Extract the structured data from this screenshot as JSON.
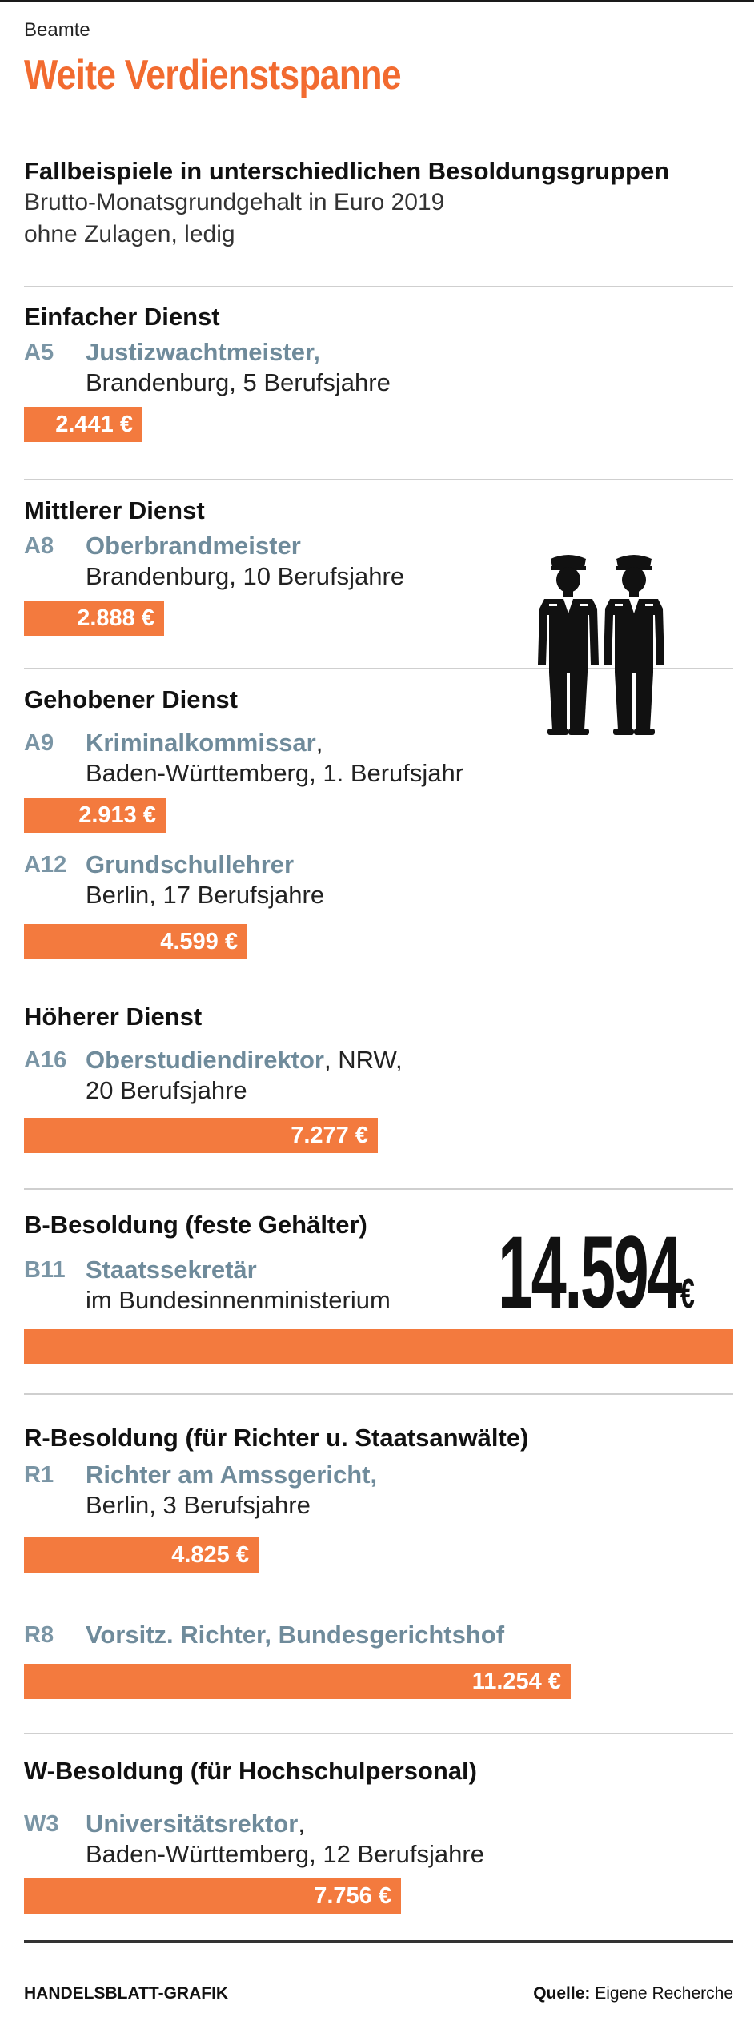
{
  "header": {
    "eyebrow": "Beamte",
    "title": "Weite Verdienstspanne",
    "subtitle_bold": "Fallbeispiele in unterschiedlichen Besoldungsgruppen",
    "subtitle_line2": "Brutto-Monatsgrundgehalt in Euro 2019",
    "subtitle_line3": "ohne Zulagen, ledig"
  },
  "chart_data": {
    "type": "bar",
    "title": "Weite Verdienstspanne",
    "unit": "€",
    "categories": [
      "A5",
      "A8",
      "A9",
      "A12",
      "A16",
      "B11",
      "R1",
      "R8",
      "W3"
    ],
    "values": [
      2441,
      2888,
      2913,
      4599,
      7277,
      14594,
      4825,
      11254,
      7756
    ],
    "value_labels": [
      "2.441 €",
      "2.888 €",
      "2.913 €",
      "4.599 €",
      "7.277 €",
      "14.594",
      "4.825 €",
      "11.254 €",
      "7.756 €"
    ],
    "xlim": [
      0,
      14594
    ],
    "grid": false,
    "legend": "none"
  },
  "sections": [
    {
      "title": "Einfacher Dienst"
    },
    {
      "title": "Mittlerer Dienst"
    },
    {
      "title": "Gehobener Dienst"
    },
    {
      "title": "Höherer Dienst"
    },
    {
      "title": "B-Besoldung (feste Gehälter)"
    },
    {
      "title": "R-Besoldung (für Richter u. Staatsanwälte)"
    },
    {
      "title": "W-Besoldung (für Hochschulpersonal)"
    }
  ],
  "entries": [
    {
      "code": "A5",
      "job": "Justizwachtmeister,",
      "rest": "",
      "line2": "Brandenburg, 5 Berufsjahre"
    },
    {
      "code": "A8",
      "job": "Oberbrandmeister",
      "rest": "",
      "line2": "Brandenburg, 10 Berufsjahre"
    },
    {
      "code": "A9",
      "job": "Kriminalkommissar",
      "rest": ",",
      "line2": "Baden-Württemberg, 1. Berufsjahr"
    },
    {
      "code": "A12",
      "job": "Grundschullehrer",
      "rest": "",
      "line2": "Berlin, 17 Berufsjahre"
    },
    {
      "code": "A16",
      "job": "Oberstudiendirektor",
      "rest": ", NRW,",
      "line2": "20 Berufsjahre"
    },
    {
      "code": "B11",
      "job": "Staatssekretär",
      "rest": "",
      "line2": "im Bundesinnenministerium"
    },
    {
      "code": "R1",
      "job": "Richter am Amssgericht,",
      "rest": "",
      "line2": "Berlin, 3 Berufsjahre"
    },
    {
      "code": "R8",
      "job": "Vorsitz. Richter, Bundesgerichtshof",
      "rest": "",
      "line2": ""
    },
    {
      "code": "W3",
      "job": "Universitätsrektor",
      "rest": ",",
      "line2": "Baden-Württemberg, 12 Berufsjahre"
    }
  ],
  "big_value": {
    "number": "14.594",
    "currency": "€"
  },
  "footer": {
    "left": "HANDELSBLATT-GRAFIK",
    "source_label": "Quelle:",
    "source_text": "Eigene Recherche"
  },
  "colors": {
    "accent": "#f26b30",
    "bar": "#f37a3e",
    "code": "#7a95a5",
    "job": "#6f8b9b"
  },
  "icon": "uniformed-officers-icon"
}
